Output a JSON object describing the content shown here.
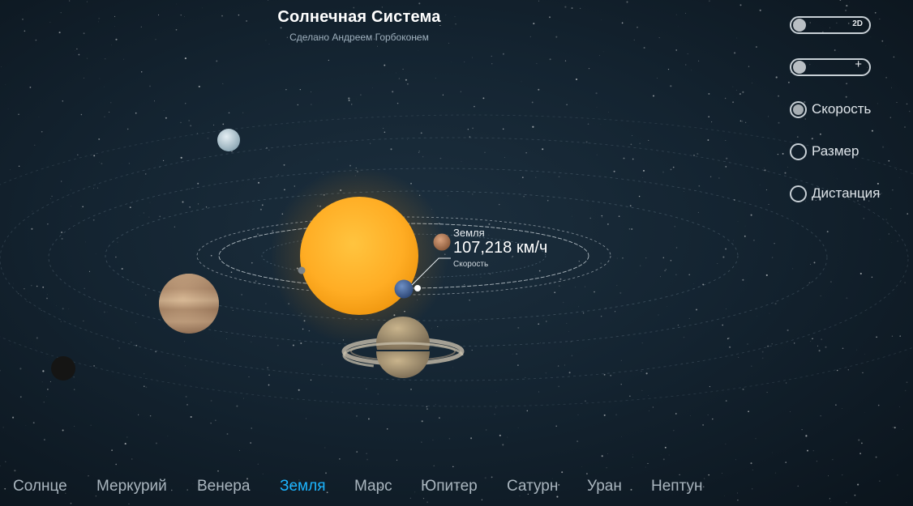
{
  "header": {
    "title": "Солнечная Система",
    "subtitle": "Сделано Андреем Горбоконем"
  },
  "controls": {
    "view_toggle": {
      "label": "2D",
      "on": false
    },
    "zoom_toggle": {
      "label": "+",
      "on": false
    },
    "options": [
      {
        "label": "Скорость",
        "selected": true
      },
      {
        "label": "Размер",
        "selected": false
      },
      {
        "label": "Дистанция",
        "selected": false
      }
    ]
  },
  "info_panel": {
    "planet": "Земля",
    "value": "107,218 км/ч",
    "metric": "Скорость"
  },
  "nav": {
    "active": "Земля",
    "items": [
      "Солнце",
      "Меркурий",
      "Венера",
      "Земля",
      "Марс",
      "Юпитер",
      "Сатурн",
      "Уран",
      "Нептун"
    ]
  },
  "colors": {
    "background": "#142431",
    "accent": "#1cb5ff",
    "sun": "#ffb22e"
  }
}
